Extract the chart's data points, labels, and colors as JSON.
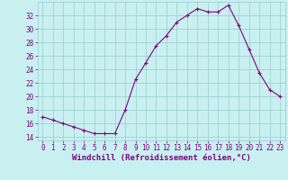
{
  "x": [
    0,
    1,
    2,
    3,
    4,
    5,
    6,
    7,
    8,
    9,
    10,
    11,
    12,
    13,
    14,
    15,
    16,
    17,
    18,
    19,
    20,
    21,
    22,
    23
  ],
  "y": [
    17,
    16.5,
    16,
    15.5,
    15,
    14.5,
    14.5,
    14.5,
    18,
    22.5,
    25,
    27.5,
    29,
    31,
    32,
    33,
    32.5,
    32.5,
    33.5,
    30.5,
    27,
    23.5,
    21,
    20
  ],
  "line_color": "#800080",
  "marker": "+",
  "marker_size": 3,
  "bg_color": "#c8f0f0",
  "grid_color": "#99cccc",
  "xlabel": "Windchill (Refroidissement éolien,°C)",
  "ylim": [
    13.5,
    34
  ],
  "xlim": [
    -0.5,
    23.5
  ],
  "yticks": [
    14,
    16,
    18,
    20,
    22,
    24,
    26,
    28,
    30,
    32
  ],
  "xticks": [
    0,
    1,
    2,
    3,
    4,
    5,
    6,
    7,
    8,
    9,
    10,
    11,
    12,
    13,
    14,
    15,
    16,
    17,
    18,
    19,
    20,
    21,
    22,
    23
  ],
  "tick_color": "#800080",
  "label_color": "#800080",
  "tick_fontsize": 5.5,
  "xlabel_fontsize": 6.5
}
